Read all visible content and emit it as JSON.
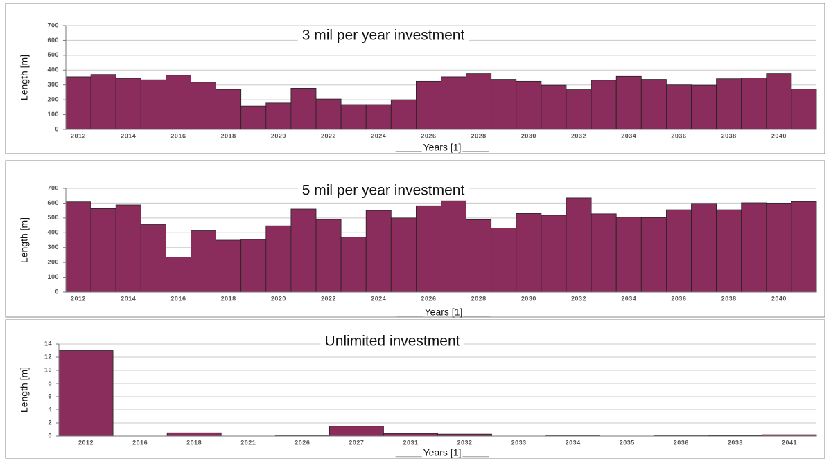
{
  "chart_data": [
    {
      "type": "bar",
      "title": "3 mil per year investment",
      "x_label": "Years [1]",
      "y_label": "Length [m]",
      "categories": [
        "2012",
        null,
        "2014",
        null,
        "2016",
        null,
        "2018",
        null,
        "2020",
        null,
        "2022",
        null,
        "2024",
        null,
        "2026",
        null,
        "2028",
        null,
        "2030",
        null,
        "2032",
        null,
        "2034",
        null,
        "2036",
        null,
        "2038",
        null,
        "2040",
        null
      ],
      "values": [
        355,
        370,
        345,
        335,
        365,
        318,
        270,
        158,
        178,
        278,
        205,
        168,
        168,
        200,
        325,
        355,
        375,
        338,
        325,
        298,
        268,
        332,
        358,
        338,
        300,
        298,
        342,
        348,
        375,
        272
      ],
      "color": "#8b2d5c",
      "ylim": [
        0,
        700
      ],
      "yticks": [
        0,
        100,
        200,
        300,
        400,
        500,
        600,
        700
      ],
      "grid": true
    },
    {
      "type": "bar",
      "title": "5 mil per year investment",
      "x_label": "Years [1]",
      "y_label": "Length [m]",
      "categories": [
        "2012",
        null,
        "2014",
        null,
        "2016",
        null,
        "2018",
        null,
        "2020",
        null,
        "2022",
        null,
        "2024",
        null,
        "2026",
        null,
        "2028",
        null,
        "2030",
        null,
        "2032",
        null,
        "2034",
        null,
        "2036",
        null,
        "2038",
        null,
        "2040",
        null
      ],
      "values": [
        608,
        563,
        588,
        455,
        235,
        413,
        350,
        355,
        447,
        560,
        490,
        370,
        550,
        500,
        582,
        615,
        488,
        432,
        530,
        518,
        635,
        528,
        505,
        503,
        555,
        598,
        555,
        602,
        600,
        610
      ],
      "color": "#8b2d5c",
      "ylim": [
        0,
        700
      ],
      "yticks": [
        0,
        100,
        200,
        300,
        400,
        500,
        600,
        700
      ],
      "grid": true
    },
    {
      "type": "bar",
      "title": "Unlimited investment",
      "x_label": "Years [1]",
      "y_label": "Length [m]",
      "categories": [
        "2012",
        "2016",
        "2018",
        "2021",
        "2026",
        "2027",
        "2031",
        "2032",
        "2033",
        "2034",
        "2035",
        "2036",
        "2038",
        "2041"
      ],
      "values": [
        13,
        0,
        0.5,
        0,
        0.05,
        1.5,
        0.4,
        0.3,
        0,
        0.05,
        0,
        0.05,
        0.1,
        0.2
      ],
      "color": "#8b2d5c",
      "ylim": [
        0,
        14
      ],
      "yticks": [
        0,
        2,
        4,
        6,
        8,
        10,
        12,
        14
      ],
      "grid": true
    }
  ]
}
